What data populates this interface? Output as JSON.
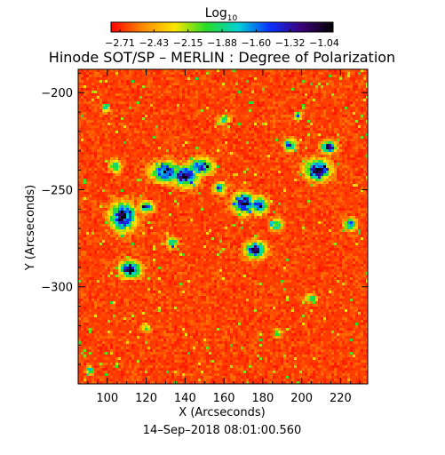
{
  "chart_data": {
    "type": "heatmap",
    "title": "Hinode SOT/SP – MERLIN : Degree of Polarization",
    "xlabel": "X (Arcseconds)",
    "ylabel": "Y (Arcseconds)",
    "timestamp": "14–Sep–2018 08:01:00.560",
    "colorbar": {
      "label_base": "Log",
      "label_sub": "10",
      "tick_labels": [
        "−2.71",
        "−2.43",
        "−2.15",
        "−1.88",
        "−1.60",
        "−1.32",
        "−1.04"
      ],
      "range": [
        -2.71,
        -1.04
      ],
      "colors": [
        "#ff0000",
        "#ff8a00",
        "#ffe600",
        "#28dc28",
        "#00d2d2",
        "#0a32ff",
        "#3c0078",
        "#000000"
      ]
    },
    "xlim": [
      85,
      234
    ],
    "ylim": [
      -350,
      -188
    ],
    "x_ticks": [
      100,
      120,
      140,
      160,
      180,
      200,
      220
    ],
    "x_tick_labels": [
      "100",
      "120",
      "140",
      "160",
      "180",
      "200",
      "220"
    ],
    "y_ticks": [
      -200,
      -250,
      -300
    ],
    "y_tick_labels": [
      "−200",
      "−250",
      "−300"
    ],
    "background_level": -2.62,
    "features": [
      {
        "x": 108,
        "y": -264,
        "rx": 6,
        "ry": 7,
        "peak": -1.15
      },
      {
        "x": 112,
        "y": -291,
        "rx": 5,
        "ry": 4,
        "peak": -1.1
      },
      {
        "x": 130,
        "y": -241,
        "rx": 7,
        "ry": 5,
        "peak": -1.3
      },
      {
        "x": 140,
        "y": -243,
        "rx": 6,
        "ry": 5,
        "peak": -1.12
      },
      {
        "x": 148,
        "y": -238,
        "rx": 6,
        "ry": 4,
        "peak": -1.3
      },
      {
        "x": 170,
        "y": -257,
        "rx": 5,
        "ry": 5,
        "peak": -1.1
      },
      {
        "x": 178,
        "y": -258,
        "rx": 4,
        "ry": 4,
        "peak": -1.25
      },
      {
        "x": 176,
        "y": -281,
        "rx": 5,
        "ry": 4,
        "peak": -1.18
      },
      {
        "x": 208,
        "y": -240,
        "rx": 6,
        "ry": 5,
        "peak": -1.12
      },
      {
        "x": 214,
        "y": -228,
        "rx": 4,
        "ry": 3,
        "peak": -1.3
      },
      {
        "x": 194,
        "y": -227,
        "rx": 3,
        "ry": 3,
        "peak": -1.45
      },
      {
        "x": 120,
        "y": -259,
        "rx": 4,
        "ry": 3,
        "peak": -1.6
      },
      {
        "x": 104,
        "y": -238,
        "rx": 3,
        "ry": 3,
        "peak": -1.75
      },
      {
        "x": 99,
        "y": -208,
        "rx": 2,
        "ry": 2,
        "peak": -1.75
      },
      {
        "x": 158,
        "y": -249,
        "rx": 3,
        "ry": 3,
        "peak": -1.7
      },
      {
        "x": 187,
        "y": -268,
        "rx": 3,
        "ry": 3,
        "peak": -1.7
      },
      {
        "x": 225,
        "y": -268,
        "rx": 3,
        "ry": 3,
        "peak": -1.6
      },
      {
        "x": 133,
        "y": -277,
        "rx": 3,
        "ry": 3,
        "peak": -1.8
      },
      {
        "x": 160,
        "y": -214,
        "rx": 3,
        "ry": 2,
        "peak": -1.85
      },
      {
        "x": 198,
        "y": -212,
        "rx": 2,
        "ry": 2,
        "peak": -1.75
      },
      {
        "x": 91,
        "y": -343,
        "rx": 2,
        "ry": 2,
        "peak": -1.7
      },
      {
        "x": 120,
        "y": -321,
        "rx": 2,
        "ry": 2,
        "peak": -1.85
      },
      {
        "x": 205,
        "y": -306,
        "rx": 3,
        "ry": 2,
        "peak": -1.85
      },
      {
        "x": 188,
        "y": -324,
        "rx": 2,
        "ry": 2,
        "peak": -1.9
      }
    ]
  }
}
